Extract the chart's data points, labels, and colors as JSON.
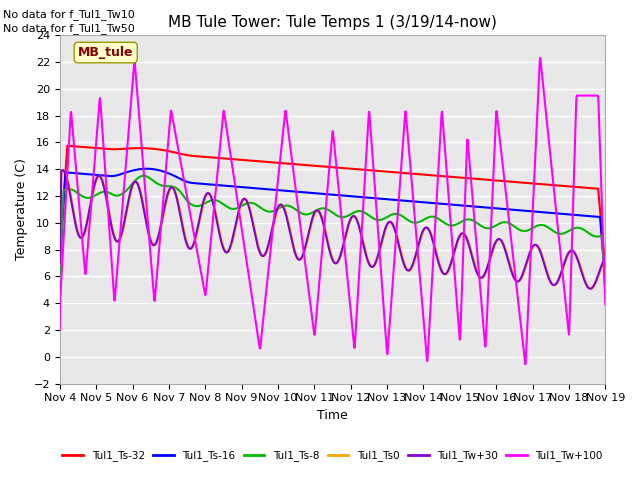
{
  "title": "MB Tule Tower: Tule Temps 1 (3/19/14-now)",
  "xlabel": "Time",
  "ylabel": "Temperature (C)",
  "ylim": [
    -2,
    24
  ],
  "yticks": [
    -2,
    0,
    2,
    4,
    6,
    8,
    10,
    12,
    14,
    16,
    18,
    20,
    22,
    24
  ],
  "xlim": [
    0,
    15
  ],
  "xtick_labels": [
    "Nov 4",
    "Nov 5",
    "Nov 6",
    "Nov 7",
    "Nov 8",
    "Nov 9",
    "Nov 10",
    "Nov 11",
    "Nov 12",
    "Nov 13",
    "Nov 14",
    "Nov 15",
    "Nov 16",
    "Nov 17",
    "Nov 18",
    "Nov 19"
  ],
  "no_data_text": [
    "No data for f_Tul1_Tw10",
    "No data for f_Tul1_Tw50"
  ],
  "legend_label_box": "MB_tule",
  "series": {
    "Tul1_Ts-32": {
      "color": "#ff0000",
      "label": "Tul1_Ts-32",
      "lw": 1.5
    },
    "Tul1_Ts-16": {
      "color": "#0000ff",
      "label": "Tul1_Ts-16",
      "lw": 1.5
    },
    "Tul1_Ts-8": {
      "color": "#00bb00",
      "label": "Tul1_Ts-8",
      "lw": 1.5
    },
    "Tul1_Ts0": {
      "color": "#ffa500",
      "label": "Tul1_Ts0",
      "lw": 1.5
    },
    "Tul1_Tw+30": {
      "color": "#8800cc",
      "label": "Tul1_Tw+30",
      "lw": 1.5
    },
    "Tul1_Tw+100": {
      "color": "#ff00ff",
      "label": "Tul1_Tw+100",
      "lw": 1.5
    }
  },
  "bg_color": "#e8e8e8",
  "title_fontsize": 11,
  "axis_fontsize": 9,
  "tick_fontsize": 8,
  "nodata_fontsize": 8
}
